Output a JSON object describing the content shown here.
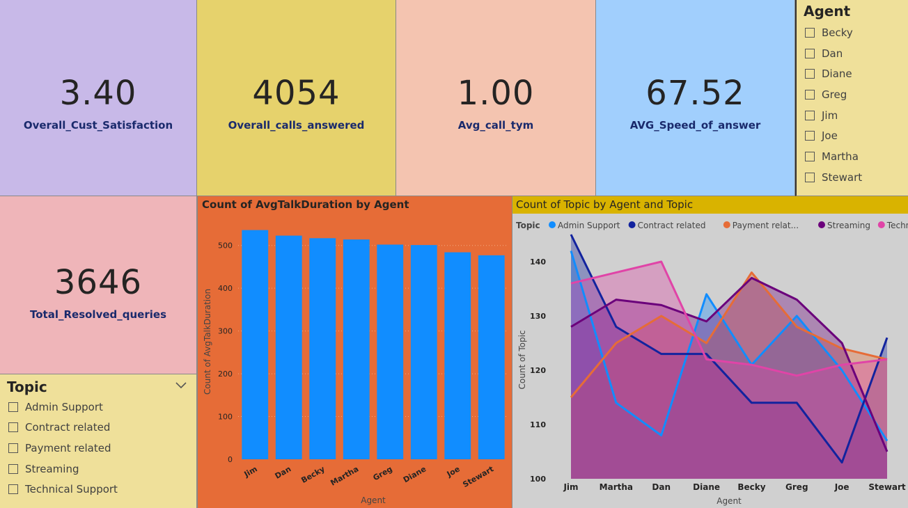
{
  "kpis": {
    "satisfaction": {
      "value": "3.40",
      "label": "Overall_Cust_Satisfaction"
    },
    "calls": {
      "value": "4054",
      "label": "Overall_calls_answered"
    },
    "avg_call": {
      "value": "1.00",
      "label": "Avg_call_tym"
    },
    "speed": {
      "value": "67.52",
      "label": "AVG_Speed_of_answer"
    },
    "resolved": {
      "value": "3646",
      "label": "Total_Resolved_queries"
    }
  },
  "agent_slicer": {
    "title": "Agent",
    "items": [
      "Becky",
      "Dan",
      "Diane",
      "Greg",
      "Jim",
      "Joe",
      "Martha",
      "Stewart"
    ]
  },
  "topic_slicer": {
    "title": "Topic",
    "items": [
      "Admin Support",
      "Contract related",
      "Payment related",
      "Streaming",
      "Technical Support"
    ]
  },
  "colors": {
    "satisfaction_bg": "#c8b9e8",
    "calls_bg": "#e6d26c",
    "avg_call_bg": "#f4c4b0",
    "speed_bg": "#a1cffd",
    "resolved_bg": "#efb5b9",
    "slicer_bg": "#efe09a",
    "bar_panel_bg": "#e66c37",
    "bar_color": "#118dff",
    "area_panel_bg": "#d0d0d0",
    "area_title_bg": "#d9b300"
  },
  "chart_data": [
    {
      "type": "bar",
      "title": "Count of AvgTalkDuration by Agent",
      "xlabel": "Agent",
      "ylabel": "Count of AvgTalkDuration",
      "categories": [
        "Jim",
        "Dan",
        "Becky",
        "Martha",
        "Greg",
        "Diane",
        "Joe",
        "Stewart"
      ],
      "values": [
        536,
        523,
        517,
        514,
        502,
        501,
        484,
        477
      ],
      "ylim": [
        0,
        550
      ],
      "yticks": [
        0,
        100,
        200,
        300,
        400,
        500
      ],
      "grid": true
    },
    {
      "type": "area",
      "title": "Count of Topic by Agent and Topic",
      "legend_title": "Topic",
      "legend_position": "top-left",
      "xlabel": "Agent",
      "ylabel": "Count of Topic",
      "categories": [
        "Jim",
        "Martha",
        "Dan",
        "Diane",
        "Becky",
        "Greg",
        "Joe",
        "Stewart"
      ],
      "ylim": [
        100,
        145
      ],
      "yticks": [
        100,
        110,
        120,
        130,
        140
      ],
      "series": [
        {
          "name": "Admin Support",
          "legend_label": "Admin Support",
          "color": "#118dff",
          "values": [
            142,
            114,
            108,
            134,
            121,
            130,
            120,
            107
          ]
        },
        {
          "name": "Contract related",
          "legend_label": "Contract related",
          "color": "#12239e",
          "values": [
            145,
            128,
            123,
            123,
            114,
            114,
            103,
            126
          ]
        },
        {
          "name": "Payment related",
          "legend_label": "Payment relat...",
          "color": "#e66c37",
          "values": [
            115,
            125,
            130,
            125,
            138,
            128,
            124,
            122
          ]
        },
        {
          "name": "Streaming",
          "legend_label": "Streaming",
          "color": "#6b007b",
          "values": [
            128,
            133,
            132,
            129,
            137,
            133,
            125,
            105
          ]
        },
        {
          "name": "Technical Support",
          "legend_label": "Technical S...",
          "color": "#e044a7",
          "values": [
            136,
            138,
            140,
            122,
            121,
            119,
            121,
            122
          ]
        }
      ]
    }
  ]
}
